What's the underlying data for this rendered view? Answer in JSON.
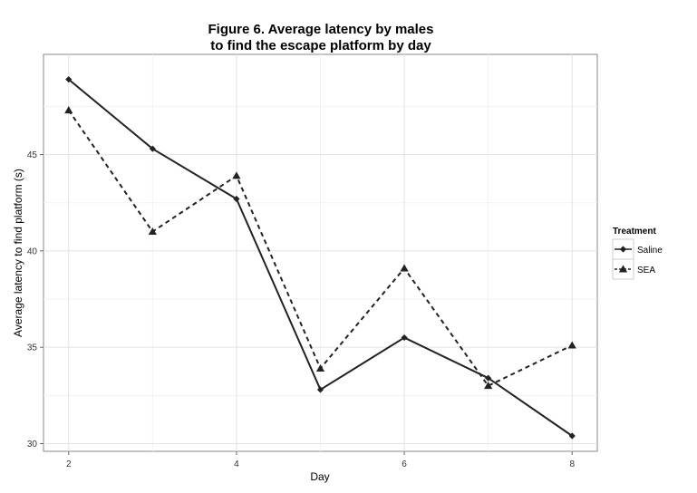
{
  "chart_data": {
    "type": "line",
    "title": [
      "Figure 6. Average latency by males",
      "to find the escape platform by day"
    ],
    "xlabel": "Day",
    "ylabel": "Average latency to find platform (s)",
    "xlim": [
      1.7,
      8.3
    ],
    "ylim": [
      29.6,
      50.2
    ],
    "x_ticks": [
      2,
      4,
      6,
      8
    ],
    "y_ticks": [
      30,
      35,
      40,
      45
    ],
    "grid": true,
    "legend": {
      "title": "Treatment",
      "position": "right"
    },
    "x": [
      2,
      3,
      4,
      5,
      6,
      7,
      8
    ],
    "series": [
      {
        "name": "Saline",
        "values": [
          48.9,
          45.3,
          42.7,
          32.8,
          35.5,
          33.4,
          30.4
        ],
        "line_style": "solid",
        "marker": "diamond",
        "color": "#222222"
      },
      {
        "name": "SEA",
        "values": [
          47.3,
          41.0,
          43.9,
          33.9,
          39.1,
          33.0,
          35.1
        ],
        "line_style": "dashed",
        "marker": "triangle",
        "color": "#222222"
      }
    ]
  }
}
